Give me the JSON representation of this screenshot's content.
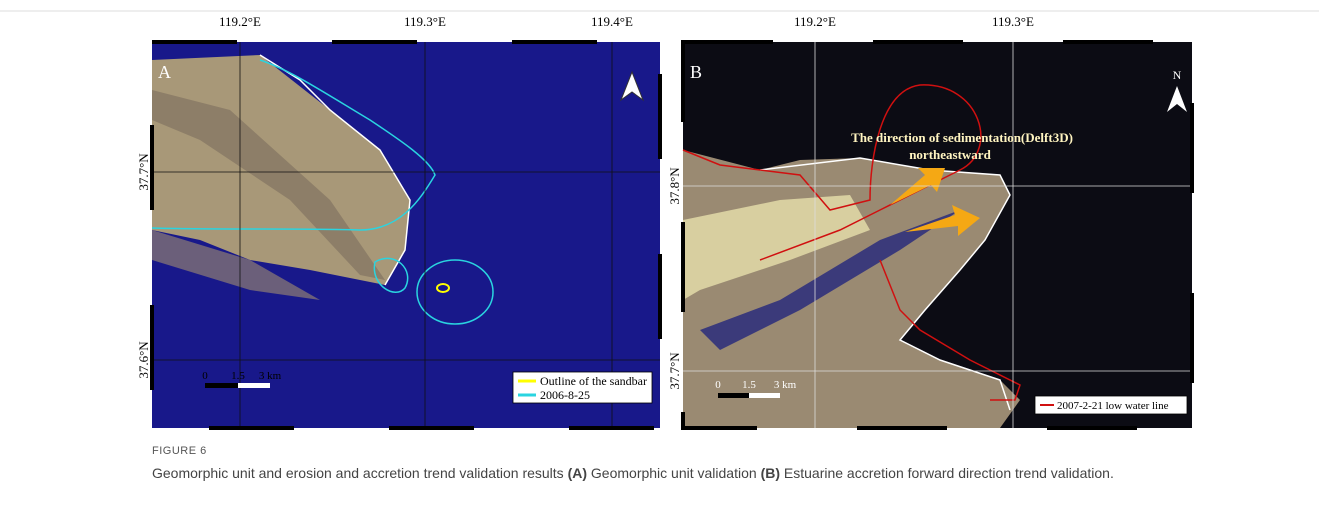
{
  "figure": {
    "panels": [
      {
        "label": "A",
        "lon_labels": [
          "119.2°E",
          "119.3°E",
          "119.4°E"
        ],
        "lat_labels": [
          "37.7°N",
          "37.6°N"
        ],
        "scale_bar": [
          "0",
          "1.5",
          "3 km"
        ],
        "legend": [
          "Outline of the sandbar",
          "2006-8-25"
        ]
      },
      {
        "label": "B",
        "north": "N",
        "lon_labels": [
          "119.2°E",
          "119.3°E"
        ],
        "lat_labels": [
          "37.8°N",
          "37.7°N"
        ],
        "annotation": [
          "The direction of sedimentation(Delft3D)",
          "northeastward"
        ],
        "scale_bar": [
          "0",
          "1.5",
          "3 km"
        ],
        "legend": [
          "2007-2-21 low water line"
        ]
      }
    ],
    "caption": {
      "label": "FIGURE 6",
      "parts": [
        "Geomorphic unit and erosion and accretion trend validation results ",
        "(A)",
        " Geomorphic unit validation ",
        "(B)",
        " Estuarine accretion forward direction trend validation."
      ]
    }
  }
}
